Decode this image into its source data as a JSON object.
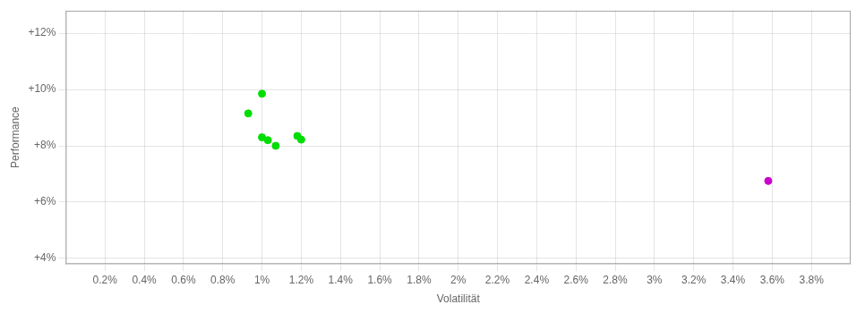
{
  "chart_data": {
    "type": "scatter",
    "x_label": "Volatilität",
    "y_label": "Performance",
    "series": [
      {
        "color": "#00dd00",
        "marker": "circle",
        "x": [
          0.01,
          0.0093,
          0.01,
          0.0103,
          0.0107,
          0.0118,
          0.012
        ],
        "values": [
          0.0985,
          0.0915,
          0.083,
          0.082,
          0.08,
          0.0835,
          0.0822
        ]
      },
      {
        "color": "#cc00cc",
        "marker": "circle",
        "x": [
          0.0358
        ],
        "values": [
          0.0675
        ]
      }
    ],
    "xlim": [
      0.0,
      0.04
    ],
    "ylim": [
      0.038,
      0.128
    ],
    "xticks": [
      {
        "value": 0.002,
        "label": "0.2%"
      },
      {
        "value": 0.004,
        "label": "0.4%"
      },
      {
        "value": 0.006,
        "label": "0.6%"
      },
      {
        "value": 0.008,
        "label": "0.8%"
      },
      {
        "value": 0.01,
        "label": "1%"
      },
      {
        "value": 0.012,
        "label": "1.2%"
      },
      {
        "value": 0.014,
        "label": "1.4%"
      },
      {
        "value": 0.016,
        "label": "1.6%"
      },
      {
        "value": 0.018,
        "label": "1.8%"
      },
      {
        "value": 0.02,
        "label": "2%"
      },
      {
        "value": 0.022,
        "label": "2.2%"
      },
      {
        "value": 0.024,
        "label": "2.4%"
      },
      {
        "value": 0.026,
        "label": "2.6%"
      },
      {
        "value": 0.028,
        "label": "2.8%"
      },
      {
        "value": 0.03,
        "label": "3%"
      },
      {
        "value": 0.032,
        "label": "3.2%"
      },
      {
        "value": 0.034,
        "label": "3.4%"
      },
      {
        "value": 0.036,
        "label": "3.6%"
      },
      {
        "value": 0.038,
        "label": "3.8%"
      }
    ],
    "yticks": [
      {
        "value": 0.04,
        "label": "+4%"
      },
      {
        "value": 0.06,
        "label": "+6%"
      },
      {
        "value": 0.08,
        "label": "+8%"
      },
      {
        "value": 0.1,
        "label": "+10%"
      },
      {
        "value": 0.12,
        "label": "+12%"
      }
    ],
    "grid": true,
    "legend": false
  }
}
